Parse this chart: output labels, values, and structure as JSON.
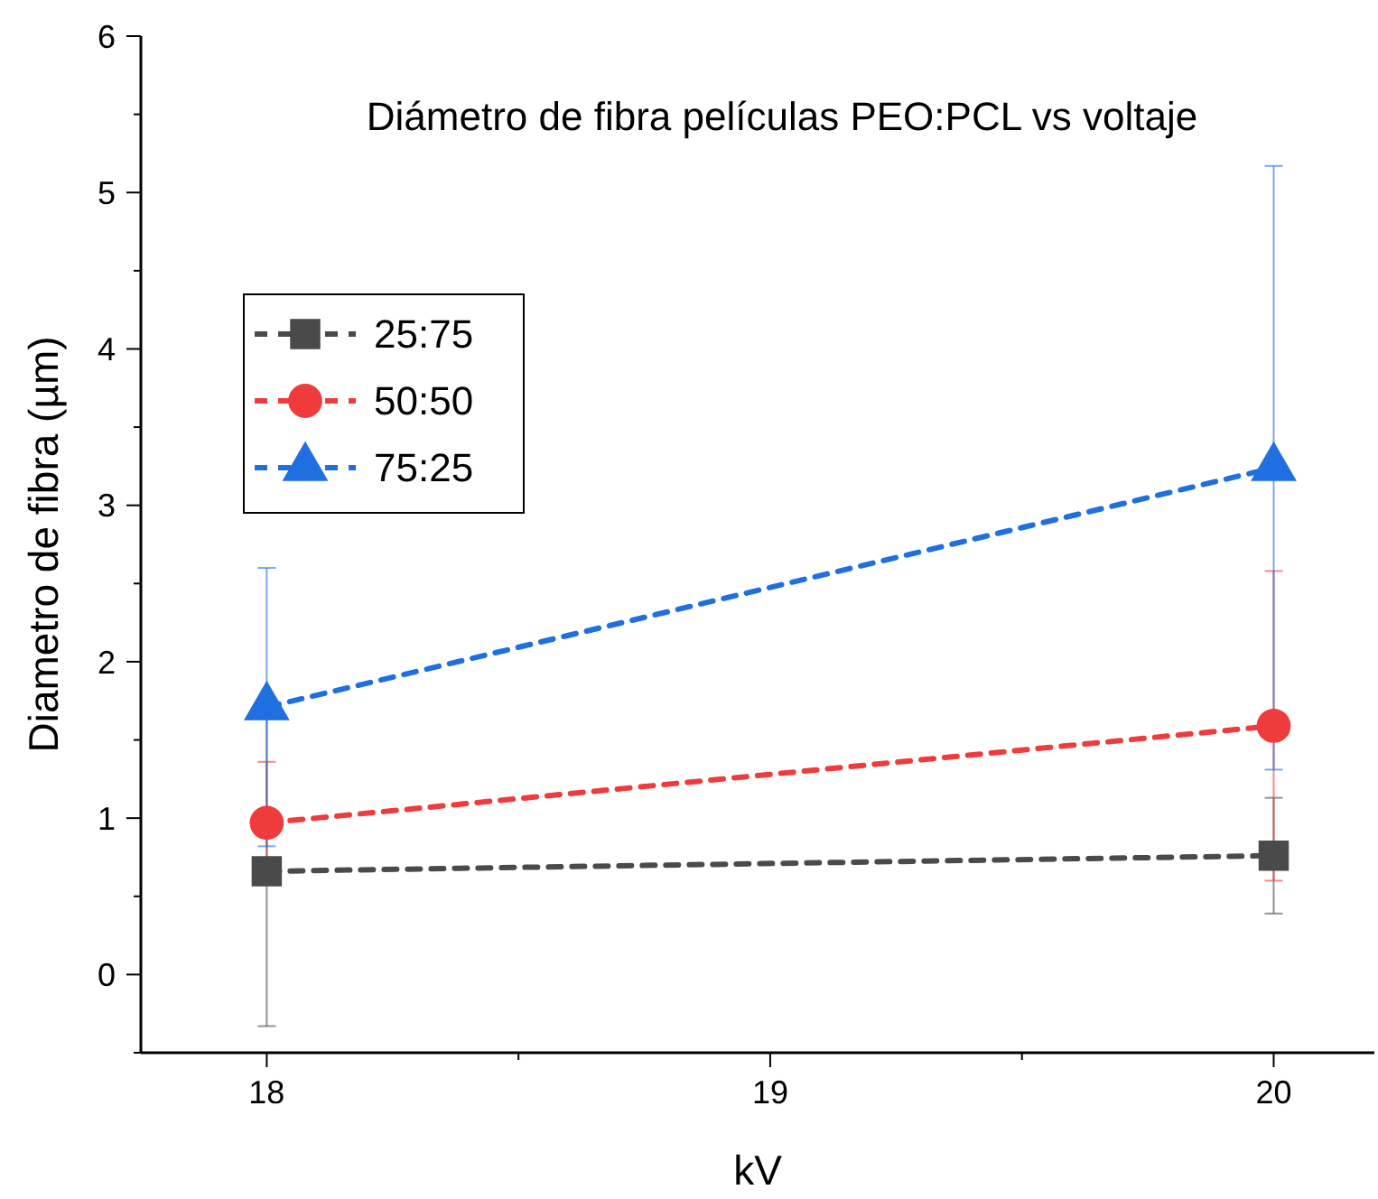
{
  "chart_data": {
    "type": "line",
    "title": "Diámetro de fibra películas PEO:PCL vs voltaje",
    "xlabel": "kV",
    "ylabel": "Diametro de fibra (µm)",
    "x": [
      18,
      20
    ],
    "series": [
      {
        "name": "25:75",
        "color": "#4a4a4a",
        "values": [
          0.66,
          0.76
        ],
        "errors": [
          0.99,
          0.37
        ],
        "marker": "square"
      },
      {
        "name": "50:50",
        "color": "#ef3b3b",
        "values": [
          0.97,
          1.59
        ],
        "errors": [
          0.39,
          0.99
        ],
        "marker": "circle"
      },
      {
        "name": "75:25",
        "color": "#1f6fe0",
        "values": [
          1.71,
          3.24
        ],
        "errors": [
          0.89,
          1.93
        ],
        "marker": "triangle"
      }
    ],
    "xlim": [
      17.75,
      20.2
    ],
    "xticks": [
      18,
      {
        "value": 18.5,
        "label": null
      },
      19,
      {
        "value": 19.5,
        "label": null
      },
      20
    ],
    "ylim": [
      -0.5,
      6
    ],
    "yticks": [
      {
        "value": -0.5,
        "label": null
      },
      0,
      {
        "value": 0.5,
        "label": null
      },
      1,
      {
        "value": 1.5,
        "label": null
      },
      2,
      {
        "value": 2.5,
        "label": null
      },
      3,
      {
        "value": 3.5,
        "label": null
      },
      4,
      {
        "value": 4.5,
        "label": null
      },
      5,
      {
        "value": 5.5,
        "label": null
      },
      6
    ],
    "line_style": "dashed",
    "grid": false,
    "legend": "top left"
  }
}
